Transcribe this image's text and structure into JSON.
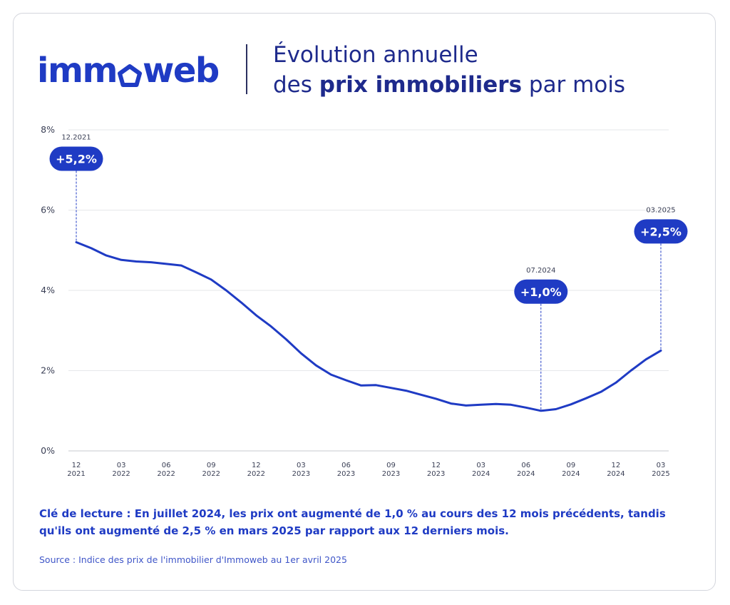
{
  "brand": {
    "logo_text_before": "imm",
    "logo_text_after": "web",
    "color": "#1f3bc4"
  },
  "header": {
    "title_line1": "Évolution annuelle",
    "title_line2_prefix": "des ",
    "title_line2_bold": "prix immobiliers",
    "title_line2_suffix": " par mois"
  },
  "chart_data": {
    "type": "line",
    "title": "Évolution annuelle des prix immobiliers par mois",
    "xlabel": "",
    "ylabel": "",
    "ylim": [
      0,
      8
    ],
    "y_ticks": [
      "0%",
      "2%",
      "4%",
      "6%",
      "8%"
    ],
    "grid": true,
    "line_color": "#1f3bc4",
    "x_tick_labels": [
      [
        "12",
        "2021"
      ],
      [
        "03",
        "2022"
      ],
      [
        "06",
        "2022"
      ],
      [
        "09",
        "2022"
      ],
      [
        "12",
        "2022"
      ],
      [
        "03",
        "2023"
      ],
      [
        "06",
        "2023"
      ],
      [
        "09",
        "2023"
      ],
      [
        "12",
        "2023"
      ],
      [
        "03",
        "2024"
      ],
      [
        "06",
        "2024"
      ],
      [
        "09",
        "2024"
      ],
      [
        "12",
        "2024"
      ],
      [
        "03",
        "2025"
      ]
    ],
    "x": [
      "12.2021",
      "01.2022",
      "02.2022",
      "03.2022",
      "04.2022",
      "05.2022",
      "06.2022",
      "07.2022",
      "08.2022",
      "09.2022",
      "10.2022",
      "11.2022",
      "12.2022",
      "01.2023",
      "02.2023",
      "03.2023",
      "04.2023",
      "05.2023",
      "06.2023",
      "07.2023",
      "08.2023",
      "09.2023",
      "10.2023",
      "11.2023",
      "12.2023",
      "01.2024",
      "02.2024",
      "03.2024",
      "04.2024",
      "05.2024",
      "06.2024",
      "07.2024",
      "08.2024",
      "09.2024",
      "10.2024",
      "11.2024",
      "12.2024",
      "01.2025",
      "02.2025",
      "03.2025"
    ],
    "values": [
      5.2,
      5.05,
      4.87,
      4.76,
      4.72,
      4.7,
      4.66,
      4.62,
      4.45,
      4.27,
      4.0,
      3.7,
      3.38,
      3.1,
      2.78,
      2.43,
      2.13,
      1.9,
      1.76,
      1.63,
      1.64,
      1.57,
      1.5,
      1.4,
      1.3,
      1.18,
      1.13,
      1.15,
      1.17,
      1.15,
      1.08,
      1.0,
      1.04,
      1.16,
      1.31,
      1.47,
      1.7,
      2.0,
      2.28,
      2.5
    ],
    "annotations": [
      {
        "period": "12.2021",
        "label": "+5,2%"
      },
      {
        "period": "07.2024",
        "label": "+1,0%"
      },
      {
        "period": "03.2025",
        "label": "+2,5%"
      }
    ]
  },
  "footer": {
    "reading_key": "Clé de lecture : En juillet 2024, les prix ont augmenté de 1,0 % au cours des 12 mois précédents, tandis qu'ils ont augmenté de 2,5 % en mars 2025 par rapport aux 12 derniers mois.",
    "source": "Source : Indice des prix de l'immobilier d'Immoweb au 1er avril 2025"
  }
}
